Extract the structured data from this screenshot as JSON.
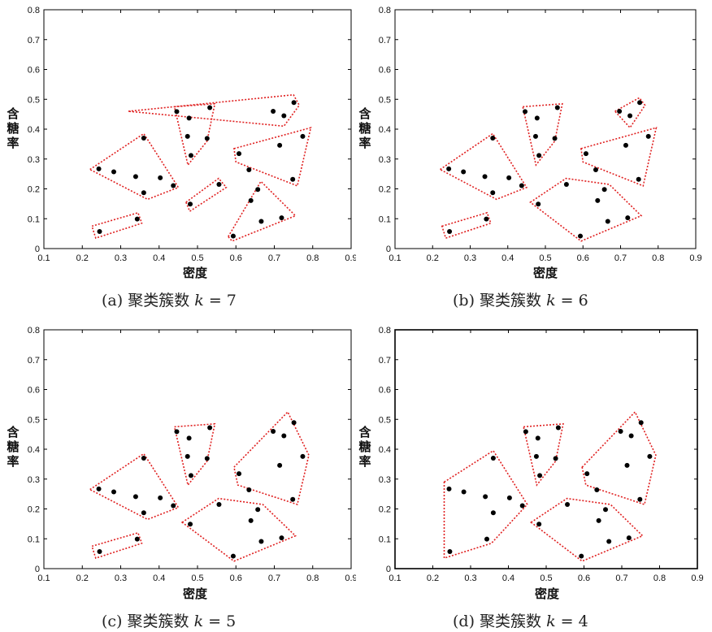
{
  "chart_data": [
    {
      "type": "scatter",
      "caption_prefix": "(a) 聚类簇数",
      "k_symbol": "k",
      "k_eq": "= 7",
      "xlabel": "密度",
      "ylabel": [
        "含",
        "糖",
        "率"
      ],
      "xlim": [
        0.1,
        0.9
      ],
      "ylim": [
        0,
        0.8
      ],
      "xticks": [
        "0.1",
        "0.2",
        "0.3",
        "0.4",
        "0.5",
        "0.6",
        "0.7",
        "0.8",
        "0.9"
      ],
      "yticks": [
        "0",
        "0.1",
        "0.2",
        "0.3",
        "0.4",
        "0.5",
        "0.6",
        "0.7",
        "0.8"
      ],
      "points": [
        [
          0.243,
          0.267
        ],
        [
          0.245,
          0.057
        ],
        [
          0.343,
          0.099
        ],
        [
          0.36,
          0.37
        ],
        [
          0.282,
          0.257
        ],
        [
          0.339,
          0.241
        ],
        [
          0.36,
          0.187
        ],
        [
          0.403,
          0.237
        ],
        [
          0.437,
          0.211
        ],
        [
          0.446,
          0.459
        ],
        [
          0.478,
          0.437
        ],
        [
          0.481,
          0.149
        ],
        [
          0.483,
          0.312
        ],
        [
          0.474,
          0.376
        ],
        [
          0.532,
          0.472
        ],
        [
          0.525,
          0.369
        ],
        [
          0.556,
          0.215
        ],
        [
          0.593,
          0.042
        ],
        [
          0.608,
          0.318
        ],
        [
          0.634,
          0.264
        ],
        [
          0.639,
          0.161
        ],
        [
          0.657,
          0.198
        ],
        [
          0.666,
          0.091
        ],
        [
          0.697,
          0.46
        ],
        [
          0.719,
          0.103
        ],
        [
          0.725,
          0.445
        ],
        [
          0.748,
          0.232
        ],
        [
          0.751,
          0.489
        ],
        [
          0.714,
          0.346
        ],
        [
          0.774,
          0.376
        ]
      ],
      "hulls": [
        [
          [
            0.22,
            0.265
          ],
          [
            0.36,
            0.385
          ],
          [
            0.45,
            0.205
          ],
          [
            0.37,
            0.165
          ]
        ],
        [
          [
            0.44,
            0.475
          ],
          [
            0.545,
            0.485
          ],
          [
            0.525,
            0.36
          ],
          [
            0.475,
            0.28
          ]
        ],
        [
          [
            0.225,
            0.075
          ],
          [
            0.345,
            0.12
          ],
          [
            0.355,
            0.085
          ],
          [
            0.235,
            0.035
          ]
        ],
        [
          [
            0.47,
            0.155
          ],
          [
            0.555,
            0.235
          ],
          [
            0.575,
            0.205
          ],
          [
            0.48,
            0.125
          ]
        ],
        [
          [
            0.32,
            0.46
          ],
          [
            0.75,
            0.515
          ],
          [
            0.765,
            0.48
          ],
          [
            0.725,
            0.41
          ]
        ],
        [
          [
            0.595,
            0.335
          ],
          [
            0.795,
            0.405
          ],
          [
            0.76,
            0.21
          ],
          [
            0.6,
            0.29
          ]
        ],
        [
          [
            0.58,
            0.04
          ],
          [
            0.665,
            0.225
          ],
          [
            0.755,
            0.11
          ],
          [
            0.59,
            0.025
          ]
        ]
      ]
    },
    {
      "type": "scatter",
      "caption_prefix": "(b) 聚类簇数",
      "k_symbol": "k",
      "k_eq": "= 6",
      "xlabel": "密度",
      "ylabel": [
        "含",
        "糖",
        "率"
      ],
      "xlim": [
        0.1,
        0.9
      ],
      "ylim": [
        0,
        0.8
      ],
      "xticks": [
        "0.1",
        "0.2",
        "0.3",
        "0.4",
        "0.5",
        "0.6",
        "0.7",
        "0.8",
        "0.9"
      ],
      "yticks": [
        "0",
        "0.1",
        "0.2",
        "0.3",
        "0.4",
        "0.5",
        "0.6",
        "0.7",
        "0.8"
      ],
      "points": [
        [
          0.243,
          0.267
        ],
        [
          0.245,
          0.057
        ],
        [
          0.343,
          0.099
        ],
        [
          0.36,
          0.37
        ],
        [
          0.282,
          0.257
        ],
        [
          0.339,
          0.241
        ],
        [
          0.36,
          0.187
        ],
        [
          0.403,
          0.237
        ],
        [
          0.437,
          0.211
        ],
        [
          0.446,
          0.459
        ],
        [
          0.478,
          0.437
        ],
        [
          0.481,
          0.149
        ],
        [
          0.483,
          0.312
        ],
        [
          0.474,
          0.376
        ],
        [
          0.532,
          0.472
        ],
        [
          0.525,
          0.369
        ],
        [
          0.556,
          0.215
        ],
        [
          0.593,
          0.042
        ],
        [
          0.608,
          0.318
        ],
        [
          0.634,
          0.264
        ],
        [
          0.639,
          0.161
        ],
        [
          0.657,
          0.198
        ],
        [
          0.666,
          0.091
        ],
        [
          0.697,
          0.46
        ],
        [
          0.719,
          0.103
        ],
        [
          0.725,
          0.445
        ],
        [
          0.748,
          0.232
        ],
        [
          0.751,
          0.489
        ],
        [
          0.714,
          0.346
        ],
        [
          0.774,
          0.376
        ]
      ],
      "hulls": [
        [
          [
            0.22,
            0.265
          ],
          [
            0.36,
            0.385
          ],
          [
            0.45,
            0.205
          ],
          [
            0.37,
            0.165
          ]
        ],
        [
          [
            0.44,
            0.475
          ],
          [
            0.545,
            0.485
          ],
          [
            0.525,
            0.36
          ],
          [
            0.475,
            0.28
          ]
        ],
        [
          [
            0.225,
            0.075
          ],
          [
            0.345,
            0.12
          ],
          [
            0.355,
            0.085
          ],
          [
            0.235,
            0.035
          ]
        ],
        [
          [
            0.685,
            0.46
          ],
          [
            0.75,
            0.505
          ],
          [
            0.765,
            0.48
          ],
          [
            0.725,
            0.405
          ]
        ],
        [
          [
            0.595,
            0.335
          ],
          [
            0.795,
            0.405
          ],
          [
            0.76,
            0.21
          ],
          [
            0.6,
            0.29
          ]
        ],
        [
          [
            0.46,
            0.155
          ],
          [
            0.555,
            0.235
          ],
          [
            0.67,
            0.215
          ],
          [
            0.755,
            0.11
          ],
          [
            0.595,
            0.025
          ]
        ]
      ]
    },
    {
      "type": "scatter",
      "caption_prefix": "(c) 聚类簇数",
      "k_symbol": "k",
      "k_eq": "= 5",
      "xlabel": "密度",
      "ylabel": [
        "含",
        "糖",
        "率"
      ],
      "xlim": [
        0.1,
        0.9
      ],
      "ylim": [
        0,
        0.8
      ],
      "xticks": [
        "0.1",
        "0.2",
        "0.3",
        "0.4",
        "0.5",
        "0.6",
        "0.7",
        "0.8",
        "0.9"
      ],
      "yticks": [
        "0",
        "0.1",
        "0.2",
        "0.3",
        "0.4",
        "0.5",
        "0.6",
        "0.7",
        "0.8"
      ],
      "points": [
        [
          0.243,
          0.267
        ],
        [
          0.245,
          0.057
        ],
        [
          0.343,
          0.099
        ],
        [
          0.36,
          0.37
        ],
        [
          0.282,
          0.257
        ],
        [
          0.339,
          0.241
        ],
        [
          0.36,
          0.187
        ],
        [
          0.403,
          0.237
        ],
        [
          0.437,
          0.211
        ],
        [
          0.446,
          0.459
        ],
        [
          0.478,
          0.437
        ],
        [
          0.481,
          0.149
        ],
        [
          0.483,
          0.312
        ],
        [
          0.474,
          0.376
        ],
        [
          0.532,
          0.472
        ],
        [
          0.525,
          0.369
        ],
        [
          0.556,
          0.215
        ],
        [
          0.593,
          0.042
        ],
        [
          0.608,
          0.318
        ],
        [
          0.634,
          0.264
        ],
        [
          0.639,
          0.161
        ],
        [
          0.657,
          0.198
        ],
        [
          0.666,
          0.091
        ],
        [
          0.697,
          0.46
        ],
        [
          0.719,
          0.103
        ],
        [
          0.725,
          0.445
        ],
        [
          0.748,
          0.232
        ],
        [
          0.751,
          0.489
        ],
        [
          0.714,
          0.346
        ],
        [
          0.774,
          0.376
        ]
      ],
      "hulls": [
        [
          [
            0.22,
            0.265
          ],
          [
            0.36,
            0.385
          ],
          [
            0.45,
            0.205
          ],
          [
            0.37,
            0.165
          ]
        ],
        [
          [
            0.44,
            0.475
          ],
          [
            0.545,
            0.485
          ],
          [
            0.525,
            0.36
          ],
          [
            0.475,
            0.28
          ]
        ],
        [
          [
            0.225,
            0.075
          ],
          [
            0.345,
            0.12
          ],
          [
            0.355,
            0.085
          ],
          [
            0.235,
            0.035
          ]
        ],
        [
          [
            0.595,
            0.34
          ],
          [
            0.735,
            0.525
          ],
          [
            0.79,
            0.38
          ],
          [
            0.76,
            0.215
          ],
          [
            0.605,
            0.28
          ]
        ],
        [
          [
            0.46,
            0.155
          ],
          [
            0.555,
            0.235
          ],
          [
            0.67,
            0.215
          ],
          [
            0.755,
            0.11
          ],
          [
            0.595,
            0.025
          ]
        ]
      ]
    },
    {
      "type": "scatter",
      "caption_prefix": "(d) 聚类簇数",
      "k_symbol": "k",
      "k_eq": "= 4",
      "xlabel": "密度",
      "ylabel": [
        "含",
        "糖",
        "率"
      ],
      "xlim": [
        0.1,
        0.9
      ],
      "ylim": [
        0,
        0.8
      ],
      "xticks": [
        "0.1",
        "0.2",
        "0.3",
        "0.4",
        "0.5",
        "0.6",
        "0.7",
        "0.8",
        "0.9"
      ],
      "yticks": [
        "0",
        "0.1",
        "0.2",
        "0.3",
        "0.4",
        "0.5",
        "0.6",
        "0.7",
        "0.8"
      ],
      "points": [
        [
          0.243,
          0.267
        ],
        [
          0.245,
          0.057
        ],
        [
          0.343,
          0.099
        ],
        [
          0.36,
          0.37
        ],
        [
          0.282,
          0.257
        ],
        [
          0.339,
          0.241
        ],
        [
          0.36,
          0.187
        ],
        [
          0.403,
          0.237
        ],
        [
          0.437,
          0.211
        ],
        [
          0.446,
          0.459
        ],
        [
          0.478,
          0.437
        ],
        [
          0.481,
          0.149
        ],
        [
          0.483,
          0.312
        ],
        [
          0.474,
          0.376
        ],
        [
          0.532,
          0.472
        ],
        [
          0.525,
          0.369
        ],
        [
          0.556,
          0.215
        ],
        [
          0.593,
          0.042
        ],
        [
          0.608,
          0.318
        ],
        [
          0.634,
          0.264
        ],
        [
          0.639,
          0.161
        ],
        [
          0.657,
          0.198
        ],
        [
          0.666,
          0.091
        ],
        [
          0.697,
          0.46
        ],
        [
          0.719,
          0.103
        ],
        [
          0.725,
          0.445
        ],
        [
          0.748,
          0.232
        ],
        [
          0.751,
          0.489
        ],
        [
          0.714,
          0.346
        ],
        [
          0.774,
          0.376
        ]
      ],
      "hulls": [
        [
          [
            0.23,
            0.29
          ],
          [
            0.36,
            0.395
          ],
          [
            0.45,
            0.215
          ],
          [
            0.355,
            0.085
          ],
          [
            0.23,
            0.035
          ]
        ],
        [
          [
            0.44,
            0.475
          ],
          [
            0.545,
            0.485
          ],
          [
            0.525,
            0.36
          ],
          [
            0.475,
            0.28
          ]
        ],
        [
          [
            0.595,
            0.34
          ],
          [
            0.735,
            0.525
          ],
          [
            0.79,
            0.38
          ],
          [
            0.76,
            0.215
          ],
          [
            0.605,
            0.28
          ]
        ],
        [
          [
            0.46,
            0.155
          ],
          [
            0.555,
            0.235
          ],
          [
            0.67,
            0.215
          ],
          [
            0.755,
            0.11
          ],
          [
            0.595,
            0.025
          ]
        ]
      ]
    }
  ],
  "colors": {
    "hull": "#e02020",
    "point": "#000000",
    "axis": "#000000"
  }
}
